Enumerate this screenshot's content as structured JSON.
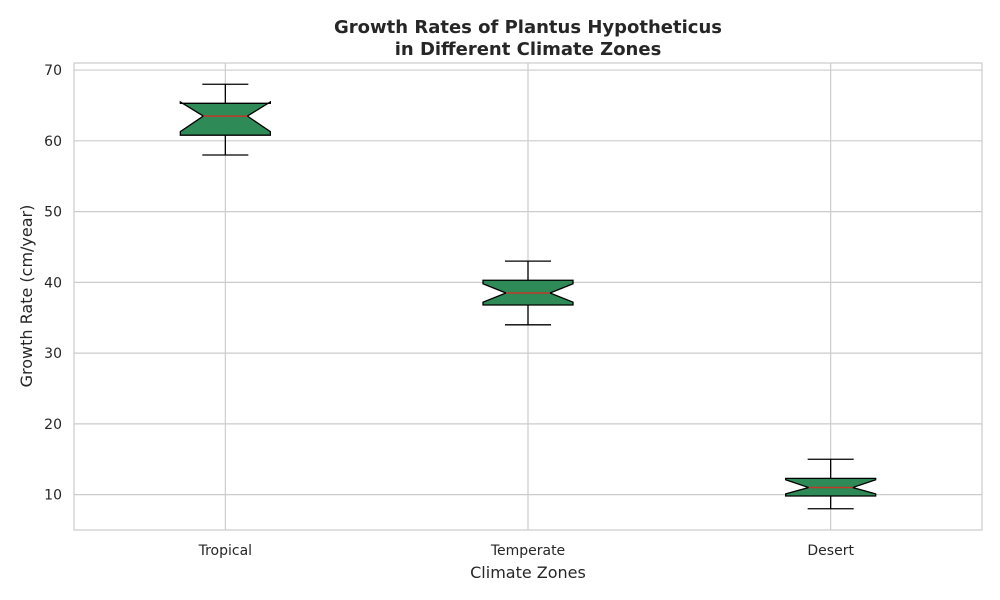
{
  "chart_data": {
    "type": "boxplot",
    "title_line1": "Growth Rates of Plantus Hypotheticus",
    "title_line2": "in Different Climate Zones",
    "xlabel": "Climate Zones",
    "ylabel": "Growth Rate (cm/year)",
    "ylim": [
      5,
      71
    ],
    "yticks": [
      10,
      20,
      30,
      40,
      50,
      60,
      70
    ],
    "grid": true,
    "notched": true,
    "box_color": "#2e8b57",
    "median_color": "#c0392b",
    "categories": [
      "Tropical",
      "Temperate",
      "Desert"
    ],
    "series": [
      {
        "category": "Tropical",
        "whisker_low": 58,
        "q1": 60.8,
        "median": 63.5,
        "q3": 65.3,
        "whisker_high": 68,
        "notch_low": 61.3,
        "notch_high": 65.5
      },
      {
        "category": "Temperate",
        "whisker_low": 34,
        "q1": 36.8,
        "median": 38.5,
        "q3": 40.3,
        "whisker_high": 43,
        "notch_low": 37.2,
        "notch_high": 39.8
      },
      {
        "category": "Desert",
        "whisker_low": 8,
        "q1": 9.8,
        "median": 11,
        "q3": 12.3,
        "whisker_high": 15,
        "notch_low": 10.1,
        "notch_high": 12.1
      }
    ]
  }
}
